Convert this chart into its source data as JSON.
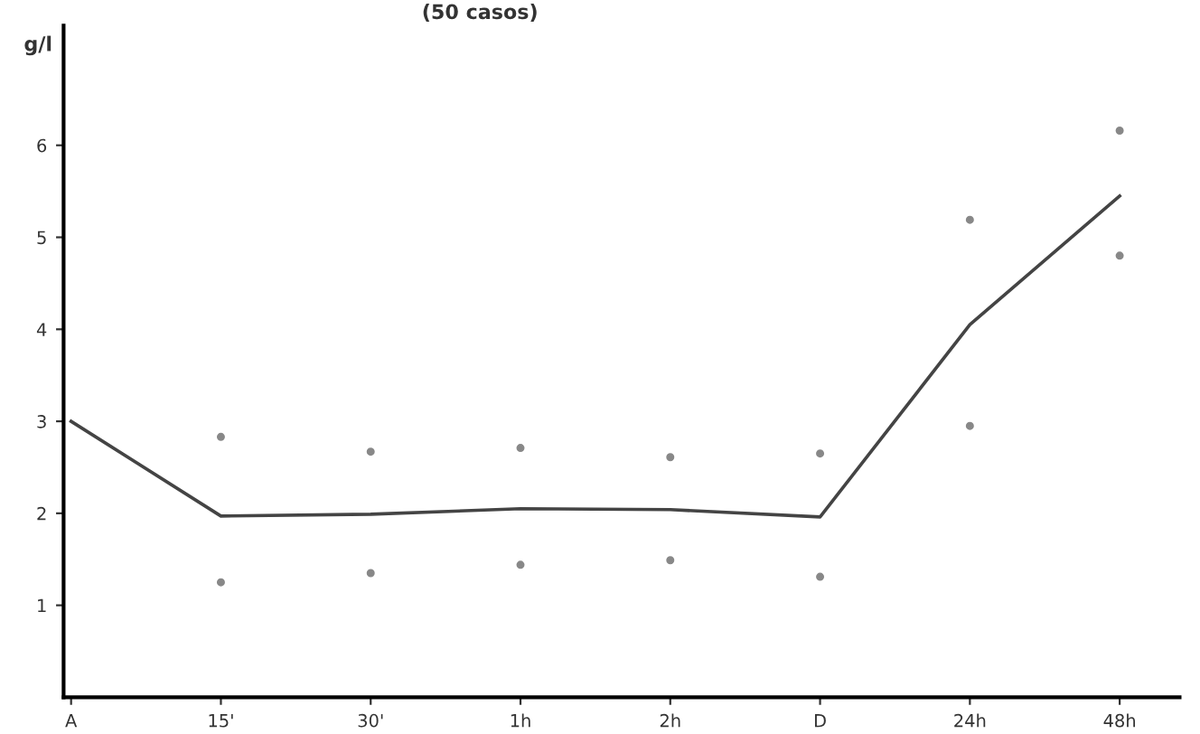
{
  "chart_data": {
    "type": "line",
    "title": "(50 casos)",
    "ylabel": "g/l",
    "categories": [
      "A",
      "15'",
      "30'",
      "1h",
      "2h",
      "D",
      "24h",
      "48h"
    ],
    "ylim": [
      0,
      7.3
    ],
    "yticks": [
      1,
      2,
      3,
      4,
      5,
      6
    ],
    "series": [
      {
        "color": "#444444",
        "marker": "none",
        "values": [
          3.0,
          1.97,
          1.99,
          2.05,
          2.04,
          1.96,
          4.05,
          5.45
        ]
      },
      {
        "type": "scatter",
        "marker": "circle",
        "color": "#888888",
        "values": [
          null,
          2.83,
          2.67,
          2.71,
          2.61,
          2.65,
          5.19,
          6.16
        ]
      },
      {
        "type": "scatter",
        "marker": "circle",
        "color": "#888888",
        "values": [
          null,
          1.25,
          1.35,
          1.44,
          1.49,
          1.31,
          2.95,
          4.8
        ]
      }
    ],
    "grid": false,
    "line_style": "solid"
  }
}
